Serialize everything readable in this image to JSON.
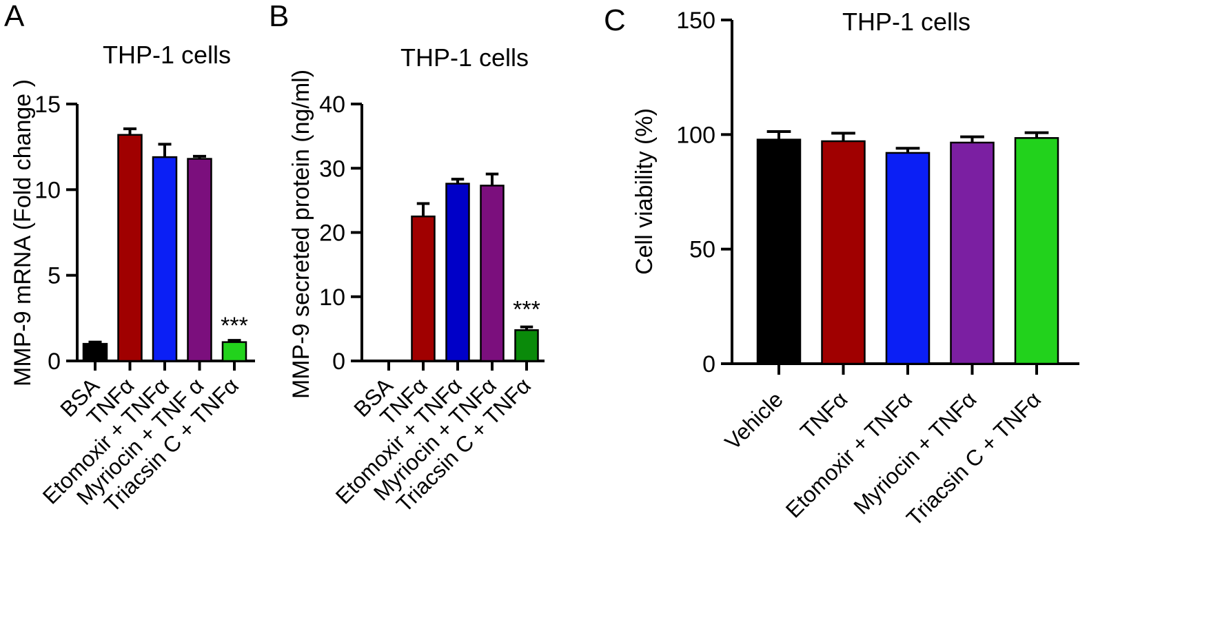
{
  "panels": [
    {
      "letter": "A",
      "chart_data": {
        "type": "bar",
        "title": "THP-1 cells",
        "ylabel": "MMP-9 mRNA (Fold change )",
        "xlabel": "",
        "ylim": [
          0,
          15
        ],
        "yticks": [
          0,
          5,
          10,
          15
        ],
        "categories": [
          "BSA",
          "TNFα",
          "Etomoxir + TNFα",
          "Myriocin + TNF α",
          "Triacsin C + TNFα"
        ],
        "values": [
          1.0,
          13.2,
          11.9,
          11.8,
          1.1
        ],
        "errors": [
          0.1,
          0.35,
          0.75,
          0.15,
          0.1
        ],
        "colors": [
          "#000000",
          "#a00000",
          "#0b1ff5",
          "#7b0f7d",
          "#22d21c"
        ],
        "annotations": [
          {
            "category": "Triacsin C + TNFα",
            "text": "***"
          }
        ],
        "grid": false,
        "legend": "none"
      }
    },
    {
      "letter": "B",
      "chart_data": {
        "type": "bar",
        "title": "THP-1 cells",
        "ylabel": "MMP-9  secreted protein (ng/ml)",
        "xlabel": "",
        "ylim": [
          0,
          40
        ],
        "yticks": [
          0,
          10,
          20,
          30,
          40
        ],
        "categories": [
          "BSA",
          "TNFα",
          "Etomoxir + TNFα",
          "Myriocin + TNFα",
          "Triacsin C + TNFα"
        ],
        "values": [
          0,
          22.5,
          27.6,
          27.3,
          4.8
        ],
        "errors": [
          0,
          2.0,
          0.7,
          1.8,
          0.5
        ],
        "colors": [
          "#000000",
          "#a00000",
          "#0000c8",
          "#7b0f7d",
          "#0a8a0a"
        ],
        "annotations": [
          {
            "category": "Triacsin C + TNFα",
            "text": "***"
          }
        ],
        "grid": false,
        "legend": "none"
      }
    },
    {
      "letter": "C",
      "chart_data": {
        "type": "bar",
        "title": "THP-1 cells",
        "ylabel": "Cell viability (%)",
        "xlabel": "",
        "ylim": [
          0,
          150
        ],
        "yticks": [
          0,
          50,
          100,
          150
        ],
        "categories": [
          "Vehicle",
          "TNFα",
          "Etomoxir + TNFα",
          "Myriocin + TNFα",
          "Triacsin C + TNFα"
        ],
        "values": [
          97.8,
          97.1,
          92.0,
          96.5,
          98.5
        ],
        "errors": [
          3.5,
          3.5,
          2.0,
          2.5,
          2.3
        ],
        "colors": [
          "#000000",
          "#a00000",
          "#0b1ff5",
          "#7b1fa2",
          "#22d21c"
        ],
        "annotations": [],
        "grid": false,
        "legend": "none"
      }
    }
  ]
}
